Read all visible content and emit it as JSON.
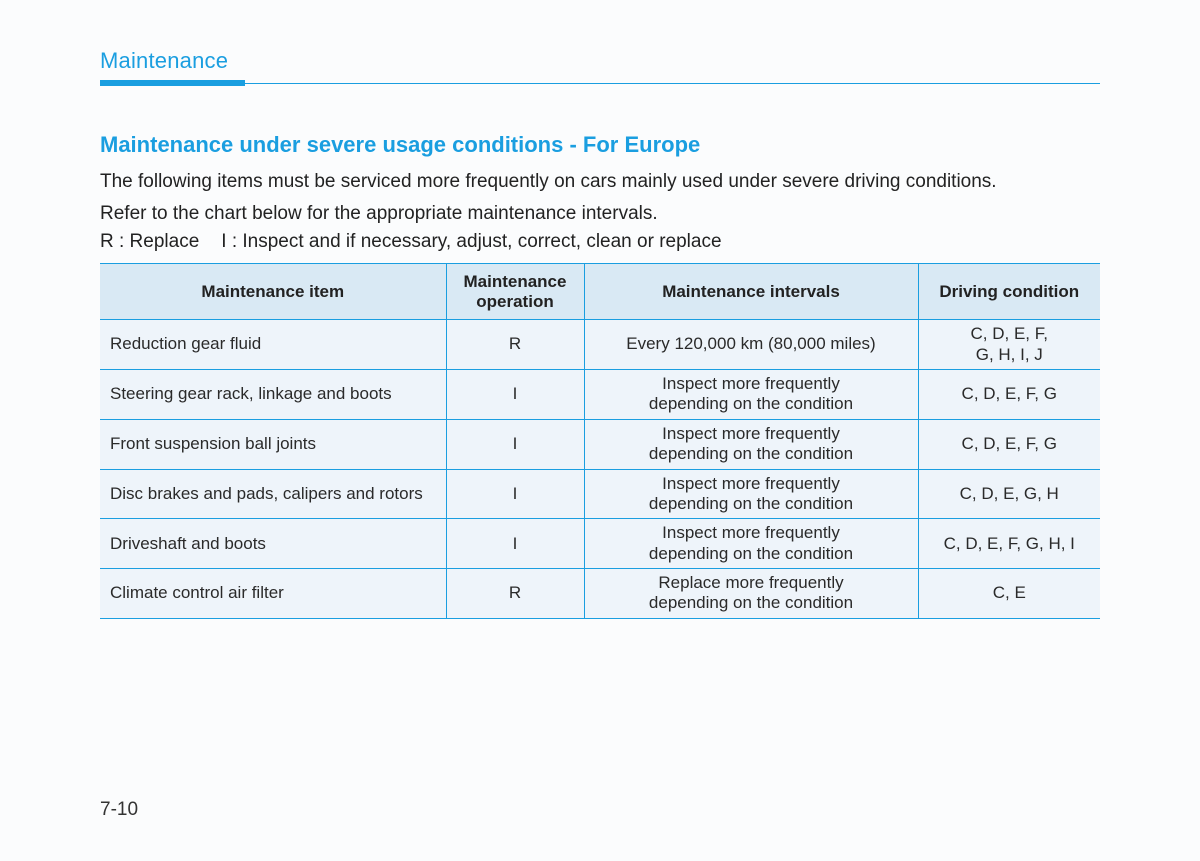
{
  "header": {
    "section_title": "Maintenance"
  },
  "content": {
    "subheading": "Maintenance under severe usage conditions - For Europe",
    "intro_line1": "The following items must be serviced more frequently on cars mainly used under severe driving conditions.",
    "intro_line2": "Refer to the chart below for the appropriate maintenance intervals.",
    "legend_r": "R : Replace",
    "legend_i": "I : Inspect and if necessary, adjust, correct, clean or replace"
  },
  "table": {
    "columns": {
      "item": "Maintenance item",
      "operation": "Maintenance\noperation",
      "intervals": "Maintenance intervals",
      "condition": "Driving condition"
    },
    "rows": [
      {
        "item": "Reduction gear fluid",
        "operation": "R",
        "intervals": "Every 120,000 km (80,000 miles)",
        "condition": "C, D, E, F,\nG, H, I, J"
      },
      {
        "item": "Steering gear rack, linkage and boots",
        "operation": "I",
        "intervals": "Inspect more frequently\ndepending on the condition",
        "condition": "C, D, E, F, G"
      },
      {
        "item": "Front suspension ball joints",
        "operation": "I",
        "intervals": "Inspect more frequently\ndepending on the condition",
        "condition": "C, D, E, F, G"
      },
      {
        "item": "Disc brakes and pads, calipers and rotors",
        "operation": "I",
        "intervals": "Inspect more frequently\ndepending on the condition",
        "condition": "C, D, E, G, H"
      },
      {
        "item": "Driveshaft and boots",
        "operation": "I",
        "intervals": "Inspect more frequently\ndepending on the condition",
        "condition": "C, D, E, F, G, H, I"
      },
      {
        "item": "Climate control air filter",
        "operation": "R",
        "intervals": "Replace more frequently\ndepending on the condition",
        "condition": "C, E"
      }
    ]
  },
  "footer": {
    "page_number": "7-10"
  },
  "style": {
    "accent_color": "#1a9ee0",
    "table_header_bg": "#d9e9f4",
    "table_body_bg": "#eef4fa",
    "page_bg": "#fbfcfd",
    "text_color": "#2a2a2a"
  }
}
